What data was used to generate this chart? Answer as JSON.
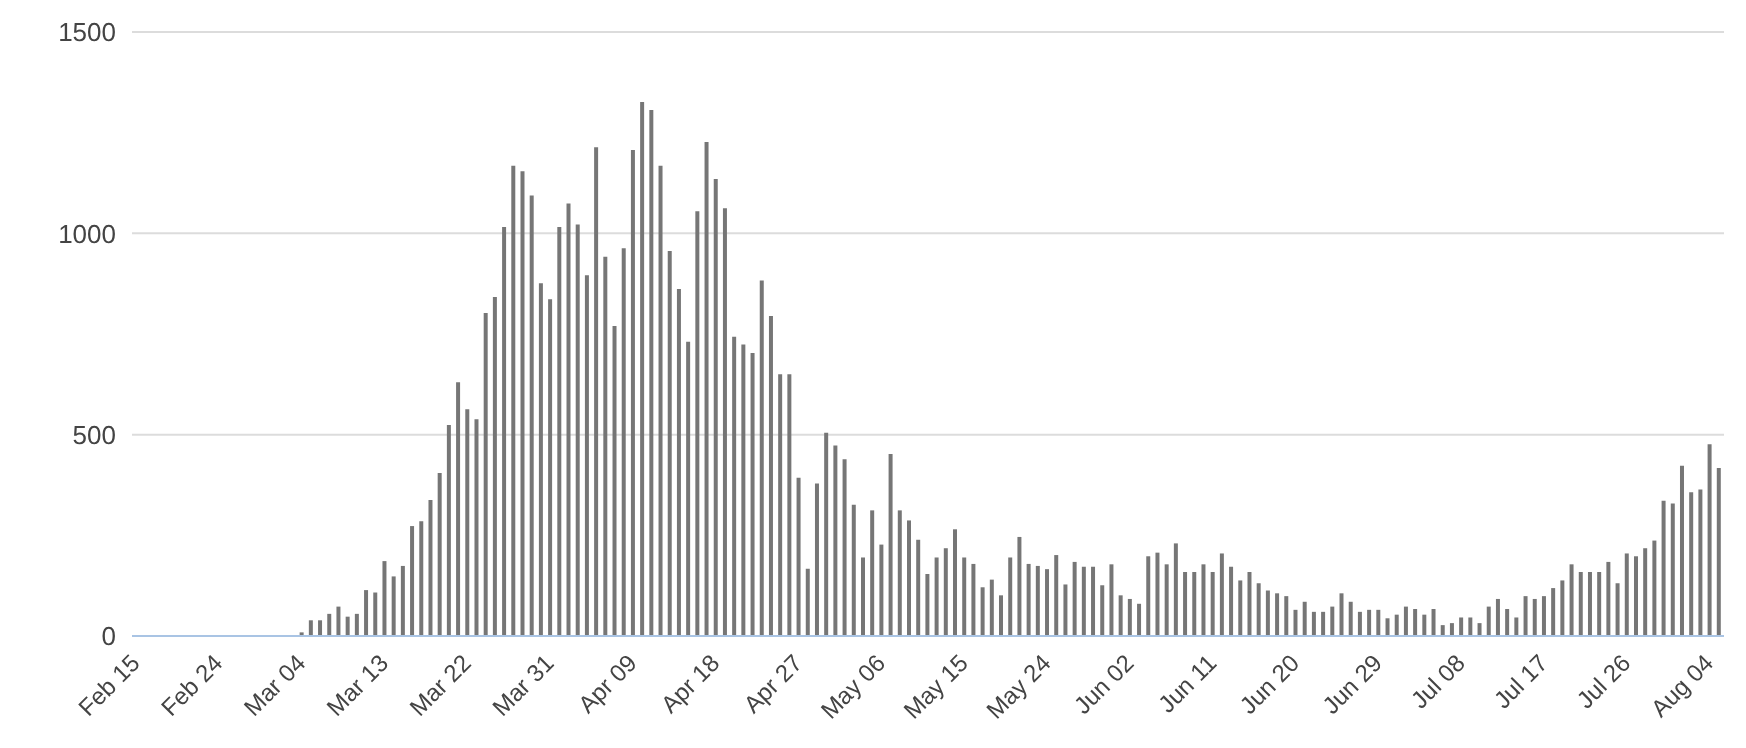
{
  "chart_data": {
    "type": "bar",
    "categories": [
      "Feb 15",
      null,
      null,
      null,
      null,
      null,
      null,
      null,
      null,
      "Feb 24",
      null,
      null,
      null,
      null,
      null,
      null,
      null,
      null,
      "Mar 04",
      null,
      null,
      null,
      null,
      null,
      null,
      null,
      null,
      "Mar 13",
      null,
      null,
      null,
      null,
      null,
      null,
      null,
      null,
      "Mar 22",
      null,
      null,
      null,
      null,
      null,
      null,
      null,
      null,
      "Mar 31",
      null,
      null,
      null,
      null,
      null,
      null,
      null,
      null,
      "Apr 09",
      null,
      null,
      null,
      null,
      null,
      null,
      null,
      null,
      "Apr 18",
      null,
      null,
      null,
      null,
      null,
      null,
      null,
      null,
      "Apr 27",
      null,
      null,
      null,
      null,
      null,
      null,
      null,
      null,
      "May 06",
      null,
      null,
      null,
      null,
      null,
      null,
      null,
      null,
      "May 15",
      null,
      null,
      null,
      null,
      null,
      null,
      null,
      null,
      "May 24",
      null,
      null,
      null,
      null,
      null,
      null,
      null,
      null,
      "Jun 02",
      null,
      null,
      null,
      null,
      null,
      null,
      null,
      null,
      "Jun 11",
      null,
      null,
      null,
      null,
      null,
      null,
      null,
      null,
      "Jun 20",
      null,
      null,
      null,
      null,
      null,
      null,
      null,
      null,
      "Jun 29",
      null,
      null,
      null,
      null,
      null,
      null,
      null,
      null,
      "Jul 08",
      null,
      null,
      null,
      null,
      null,
      null,
      null,
      null,
      "Jul 17",
      null,
      null,
      null,
      null,
      null,
      null,
      null,
      null,
      "Jul 26",
      null,
      null,
      null,
      null,
      null,
      null,
      null,
      null,
      "Aug 04",
      null
    ],
    "values": [
      0,
      0,
      0,
      0,
      0,
      0,
      0,
      0,
      0,
      0,
      0,
      0,
      0,
      0,
      0,
      0,
      0,
      0,
      9,
      39,
      39,
      55,
      73,
      48,
      55,
      114,
      108,
      186,
      148,
      174,
      273,
      285,
      338,
      405,
      524,
      630,
      563,
      538,
      802,
      842,
      1016,
      1168,
      1154,
      1094,
      876,
      836,
      1016,
      1074,
      1022,
      896,
      1214,
      942,
      770,
      963,
      1207,
      1326,
      1306,
      1168,
      956,
      862,
      731,
      1055,
      1227,
      1135,
      1062,
      743,
      724,
      703,
      883,
      795,
      650,
      650,
      393,
      167,
      379,
      505,
      473,
      439,
      326,
      195,
      312,
      227,
      452,
      312,
      287,
      239,
      154,
      195,
      218,
      265,
      195,
      179,
      121,
      140,
      101,
      195,
      246,
      179,
      174,
      166,
      201,
      128,
      184,
      172,
      172,
      126,
      178,
      101,
      92,
      80,
      198,
      207,
      178,
      230,
      159,
      159,
      178,
      159,
      205,
      172,
      138,
      159,
      131,
      113,
      106,
      99,
      65,
      85,
      60,
      60,
      73,
      106,
      85,
      60,
      65,
      65,
      44,
      53,
      73,
      67,
      53,
      67,
      27,
      32,
      46,
      46,
      32,
      73,
      92,
      67,
      46,
      99,
      92,
      99,
      119,
      138,
      178,
      159,
      159,
      159,
      184,
      131,
      205,
      198,
      218,
      237,
      336,
      329,
      423,
      357,
      364,
      476,
      417
    ],
    "color": "#767676",
    "ylim": [
      0,
      1500
    ],
    "yticks": [
      0,
      500,
      1000,
      1500
    ],
    "grid": "y"
  }
}
